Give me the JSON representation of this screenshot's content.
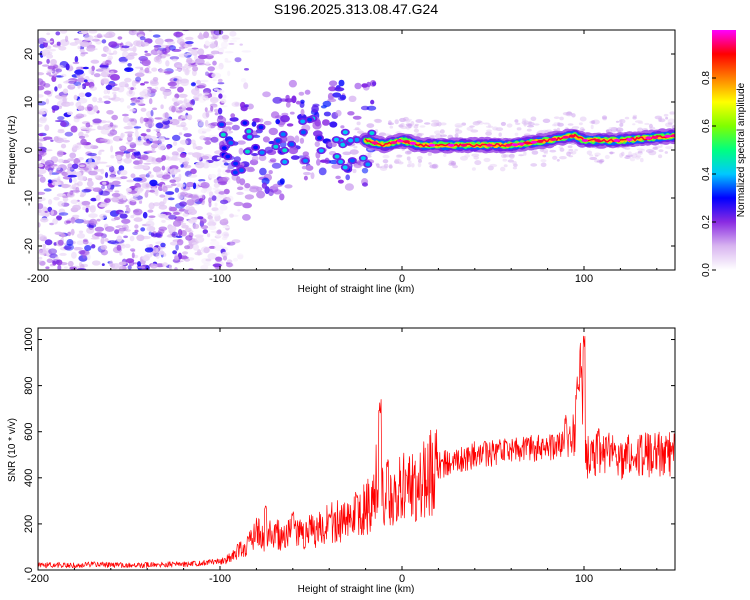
{
  "chart_data": [
    {
      "type": "heatmap",
      "title": "S196.2025.313.08.47.G24",
      "xlabel": "Height of straight line (km)",
      "ylabel": "Frequency (Hz)",
      "xlim": [
        -200,
        150
      ],
      "ylim": [
        -25,
        25
      ],
      "x_ticks": [
        -200,
        -100,
        0,
        100
      ],
      "y_ticks": [
        -20,
        -10,
        0,
        10,
        20
      ],
      "x_tick_labels": [
        "-200",
        "-100",
        "0",
        "100"
      ],
      "y_tick_labels": [
        "-20",
        "-10",
        "0",
        "10",
        "20"
      ],
      "colorbar": {
        "label": "Normalized spectral amplitude",
        "range": [
          0,
          1
        ],
        "ticks": [
          0.0,
          0.2,
          0.4,
          0.6,
          0.8
        ],
        "tick_labels": [
          "0.0",
          "0.2",
          "0.4",
          "0.6",
          "0.8"
        ],
        "colors": [
          "#ffffff",
          "#d8b4f0",
          "#8a2be2",
          "#0000ff",
          "#00c8ff",
          "#00ff80",
          "#80ff00",
          "#ffff00",
          "#ff8000",
          "#ff0000",
          "#ff00ff"
        ]
      },
      "noise_region": {
        "x_range": [
          -200,
          -95
        ],
        "y_range": [
          -25,
          25
        ]
      },
      "signal_band": {
        "x": [
          -105,
          -100,
          -90,
          -85,
          -80,
          -70,
          -60,
          -50,
          -40,
          -30,
          -20,
          -10,
          0,
          10,
          20,
          40,
          60,
          80,
          95,
          100,
          120,
          150
        ],
        "freq": [
          0,
          1,
          -3,
          2,
          4,
          3,
          1,
          3,
          0,
          -1,
          2,
          1,
          2,
          1,
          1,
          1,
          1,
          2,
          3,
          2,
          2,
          3
        ]
      }
    },
    {
      "type": "line",
      "title": "",
      "xlabel": "Height of straight line (km)",
      "ylabel": "SNR (10 * v/v)",
      "xlim": [
        -200,
        150
      ],
      "ylim": [
        0,
        1050
      ],
      "x_ticks": [
        -200,
        -100,
        0,
        100
      ],
      "y_ticks": [
        0,
        200,
        400,
        600,
        800,
        1000
      ],
      "x_tick_labels": [
        "-200",
        "-100",
        "0",
        "100"
      ],
      "y_tick_labels": [
        "0",
        "200",
        "400",
        "600",
        "800",
        "1000"
      ],
      "series": [
        {
          "name": "SNR",
          "color": "#ff0000",
          "x": [
            -200,
            -190,
            -180,
            -170,
            -160,
            -150,
            -140,
            -130,
            -120,
            -110,
            -100,
            -95,
            -90,
            -85,
            -80,
            -75,
            -70,
            -65,
            -60,
            -55,
            -50,
            -45,
            -40,
            -35,
            -30,
            -25,
            -20,
            -15,
            -13,
            -10,
            -5,
            0,
            5,
            10,
            15,
            20,
            30,
            40,
            50,
            60,
            70,
            80,
            90,
            95,
            98,
            100,
            102,
            105,
            110,
            120,
            130,
            140,
            150
          ],
          "y": [
            20,
            22,
            20,
            25,
            22,
            20,
            22,
            24,
            25,
            30,
            40,
            50,
            80,
            100,
            160,
            140,
            170,
            140,
            160,
            150,
            170,
            180,
            200,
            210,
            230,
            250,
            270,
            300,
            500,
            250,
            320,
            360,
            340,
            380,
            420,
            450,
            480,
            500,
            510,
            520,
            530,
            530,
            550,
            600,
            950,
            550,
            480,
            500,
            500,
            490,
            500,
            500,
            500
          ],
          "spikes": [
            {
              "x": -75,
              "y": 280
            },
            {
              "x": -60,
              "y": 260
            },
            {
              "x": -40,
              "y": 250
            },
            {
              "x": -25,
              "y": 340
            },
            {
              "x": -12,
              "y": 750
            },
            {
              "x": -8,
              "y": 480
            },
            {
              "x": 90,
              "y": 700
            },
            {
              "x": 100,
              "y": 1030
            },
            {
              "x": 97,
              "y": 850
            },
            {
              "x": 108,
              "y": 620
            }
          ]
        }
      ]
    }
  ]
}
